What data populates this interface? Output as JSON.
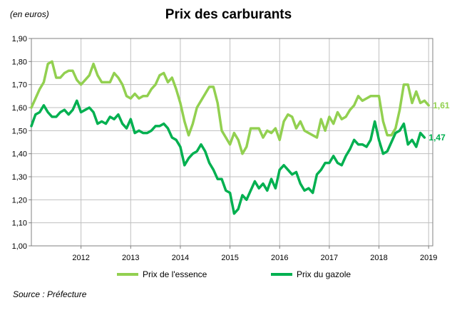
{
  "unit_label": "(en euros)",
  "title": "Prix des carburants",
  "source": "Source : Préfecture",
  "colors": {
    "essence": "#92d050",
    "gazole": "#00b050",
    "grid": "#bfbfbf",
    "axis": "#808080"
  },
  "chart_data": {
    "type": "line",
    "title": "Prix des carburants",
    "xlabel": "",
    "ylabel": "(en euros)",
    "ylim": [
      1.0,
      1.9
    ],
    "yticks": [
      "1,00",
      "1,10",
      "1,20",
      "1,30",
      "1,40",
      "1,50",
      "1,60",
      "1,70",
      "1,80",
      "1,90"
    ],
    "xticks": [
      "2012",
      "2013",
      "2014",
      "2015",
      "2016",
      "2017",
      "2018",
      "2019"
    ],
    "x_range": [
      "2011-01",
      "2019-02"
    ],
    "grid": true,
    "legend_position": "bottom",
    "series": [
      {
        "name": "Prix de l'essence",
        "end_label": "1,61",
        "values": [
          [
            "2011-01",
            1.6
          ],
          [
            "2011-02",
            1.64
          ],
          [
            "2011-03",
            1.68
          ],
          [
            "2011-04",
            1.71
          ],
          [
            "2011-05",
            1.79
          ],
          [
            "2011-06",
            1.8
          ],
          [
            "2011-07",
            1.73
          ],
          [
            "2011-08",
            1.73
          ],
          [
            "2011-09",
            1.75
          ],
          [
            "2011-10",
            1.76
          ],
          [
            "2011-11",
            1.76
          ],
          [
            "2011-12",
            1.72
          ],
          [
            "2012-01",
            1.7
          ],
          [
            "2012-02",
            1.72
          ],
          [
            "2012-03",
            1.74
          ],
          [
            "2012-04",
            1.79
          ],
          [
            "2012-05",
            1.74
          ],
          [
            "2012-06",
            1.71
          ],
          [
            "2012-07",
            1.71
          ],
          [
            "2012-08",
            1.71
          ],
          [
            "2012-09",
            1.75
          ],
          [
            "2012-10",
            1.73
          ],
          [
            "2012-11",
            1.7
          ],
          [
            "2012-12",
            1.65
          ],
          [
            "2013-01",
            1.64
          ],
          [
            "2013-02",
            1.66
          ],
          [
            "2013-03",
            1.64
          ],
          [
            "2013-04",
            1.65
          ],
          [
            "2013-05",
            1.65
          ],
          [
            "2013-06",
            1.68
          ],
          [
            "2013-07",
            1.7
          ],
          [
            "2013-08",
            1.74
          ],
          [
            "2013-09",
            1.75
          ],
          [
            "2013-10",
            1.71
          ],
          [
            "2013-11",
            1.73
          ],
          [
            "2013-12",
            1.68
          ],
          [
            "2014-01",
            1.62
          ],
          [
            "2014-02",
            1.54
          ],
          [
            "2014-03",
            1.48
          ],
          [
            "2014-04",
            1.53
          ],
          [
            "2014-05",
            1.6
          ],
          [
            "2014-06",
            1.63
          ],
          [
            "2014-07",
            1.66
          ],
          [
            "2014-08",
            1.69
          ],
          [
            "2014-09",
            1.69
          ],
          [
            "2014-10",
            1.62
          ],
          [
            "2014-11",
            1.5
          ],
          [
            "2014-12",
            1.47
          ],
          [
            "2015-01",
            1.44
          ],
          [
            "2015-02",
            1.49
          ],
          [
            "2015-03",
            1.46
          ],
          [
            "2015-04",
            1.4
          ],
          [
            "2015-05",
            1.43
          ],
          [
            "2015-06",
            1.51
          ],
          [
            "2015-07",
            1.51
          ],
          [
            "2015-08",
            1.51
          ],
          [
            "2015-09",
            1.47
          ],
          [
            "2015-10",
            1.5
          ],
          [
            "2015-11",
            1.49
          ],
          [
            "2015-12",
            1.51
          ],
          [
            "2016-01",
            1.46
          ],
          [
            "2016-02",
            1.54
          ],
          [
            "2016-03",
            1.57
          ],
          [
            "2016-04",
            1.56
          ],
          [
            "2016-05",
            1.51
          ],
          [
            "2016-06",
            1.54
          ],
          [
            "2016-07",
            1.5
          ],
          [
            "2016-08",
            1.49
          ],
          [
            "2016-09",
            1.48
          ],
          [
            "2016-10",
            1.47
          ],
          [
            "2016-11",
            1.55
          ],
          [
            "2016-12",
            1.5
          ],
          [
            "2017-01",
            1.56
          ],
          [
            "2017-02",
            1.53
          ],
          [
            "2017-03",
            1.58
          ],
          [
            "2017-04",
            1.55
          ],
          [
            "2017-05",
            1.56
          ],
          [
            "2017-06",
            1.59
          ],
          [
            "2017-07",
            1.61
          ],
          [
            "2017-08",
            1.65
          ],
          [
            "2017-09",
            1.63
          ],
          [
            "2017-10",
            1.64
          ],
          [
            "2017-11",
            1.65
          ],
          [
            "2017-12",
            1.65
          ],
          [
            "2018-01",
            1.65
          ],
          [
            "2018-02",
            1.54
          ],
          [
            "2018-03",
            1.48
          ],
          [
            "2018-04",
            1.48
          ],
          [
            "2018-05",
            1.51
          ],
          [
            "2018-06",
            1.59
          ],
          [
            "2018-07",
            1.7
          ],
          [
            "2018-08",
            1.7
          ],
          [
            "2018-09",
            1.62
          ],
          [
            "2018-10",
            1.67
          ],
          [
            "2018-11",
            1.62
          ],
          [
            "2018-12",
            1.63
          ],
          [
            "2019-01",
            1.61
          ]
        ]
      },
      {
        "name": "Prix du gazole",
        "end_label": "1,47",
        "values": [
          [
            "2011-01",
            1.52
          ],
          [
            "2011-02",
            1.57
          ],
          [
            "2011-03",
            1.58
          ],
          [
            "2011-04",
            1.61
          ],
          [
            "2011-05",
            1.58
          ],
          [
            "2011-06",
            1.56
          ],
          [
            "2011-07",
            1.56
          ],
          [
            "2011-08",
            1.58
          ],
          [
            "2011-09",
            1.59
          ],
          [
            "2011-10",
            1.57
          ],
          [
            "2011-11",
            1.59
          ],
          [
            "2011-12",
            1.63
          ],
          [
            "2012-01",
            1.58
          ],
          [
            "2012-02",
            1.59
          ],
          [
            "2012-03",
            1.6
          ],
          [
            "2012-04",
            1.58
          ],
          [
            "2012-05",
            1.53
          ],
          [
            "2012-06",
            1.54
          ],
          [
            "2012-07",
            1.53
          ],
          [
            "2012-08",
            1.56
          ],
          [
            "2012-09",
            1.55
          ],
          [
            "2012-10",
            1.57
          ],
          [
            "2012-11",
            1.53
          ],
          [
            "2012-12",
            1.51
          ],
          [
            "2013-01",
            1.55
          ],
          [
            "2013-02",
            1.49
          ],
          [
            "2013-03",
            1.5
          ],
          [
            "2013-04",
            1.49
          ],
          [
            "2013-05",
            1.49
          ],
          [
            "2013-06",
            1.5
          ],
          [
            "2013-07",
            1.52
          ],
          [
            "2013-08",
            1.52
          ],
          [
            "2013-09",
            1.53
          ],
          [
            "2013-10",
            1.51
          ],
          [
            "2013-11",
            1.47
          ],
          [
            "2013-12",
            1.46
          ],
          [
            "2014-01",
            1.43
          ],
          [
            "2014-02",
            1.35
          ],
          [
            "2014-03",
            1.38
          ],
          [
            "2014-04",
            1.4
          ],
          [
            "2014-05",
            1.41
          ],
          [
            "2014-06",
            1.44
          ],
          [
            "2014-07",
            1.41
          ],
          [
            "2014-08",
            1.36
          ],
          [
            "2014-09",
            1.33
          ],
          [
            "2014-10",
            1.29
          ],
          [
            "2014-11",
            1.29
          ],
          [
            "2014-12",
            1.24
          ],
          [
            "2015-01",
            1.23
          ],
          [
            "2015-02",
            1.14
          ],
          [
            "2015-03",
            1.16
          ],
          [
            "2015-04",
            1.22
          ],
          [
            "2015-05",
            1.2
          ],
          [
            "2015-06",
            1.24
          ],
          [
            "2015-07",
            1.28
          ],
          [
            "2015-08",
            1.25
          ],
          [
            "2015-09",
            1.27
          ],
          [
            "2015-10",
            1.24
          ],
          [
            "2015-11",
            1.29
          ],
          [
            "2015-12",
            1.25
          ],
          [
            "2016-01",
            1.33
          ],
          [
            "2016-02",
            1.35
          ],
          [
            "2016-03",
            1.33
          ],
          [
            "2016-04",
            1.31
          ],
          [
            "2016-05",
            1.32
          ],
          [
            "2016-06",
            1.27
          ],
          [
            "2016-07",
            1.24
          ],
          [
            "2016-08",
            1.25
          ],
          [
            "2016-09",
            1.23
          ],
          [
            "2016-10",
            1.31
          ],
          [
            "2016-11",
            1.33
          ],
          [
            "2016-12",
            1.36
          ],
          [
            "2017-01",
            1.36
          ],
          [
            "2017-02",
            1.39
          ],
          [
            "2017-03",
            1.36
          ],
          [
            "2017-04",
            1.35
          ],
          [
            "2017-05",
            1.39
          ],
          [
            "2017-06",
            1.42
          ],
          [
            "2017-07",
            1.46
          ],
          [
            "2017-08",
            1.44
          ],
          [
            "2017-09",
            1.44
          ],
          [
            "2017-10",
            1.43
          ],
          [
            "2017-11",
            1.46
          ],
          [
            "2017-12",
            1.54
          ],
          [
            "2018-01",
            1.46
          ],
          [
            "2018-02",
            1.4
          ],
          [
            "2018-03",
            1.41
          ],
          [
            "2018-04",
            1.45
          ],
          [
            "2018-05",
            1.49
          ],
          [
            "2018-06",
            1.5
          ],
          [
            "2018-07",
            1.53
          ],
          [
            "2018-08",
            1.44
          ],
          [
            "2018-09",
            1.46
          ],
          [
            "2018-10",
            1.43
          ],
          [
            "2018-11",
            1.49
          ],
          [
            "2018-12",
            1.47
          ]
        ]
      }
    ]
  }
}
